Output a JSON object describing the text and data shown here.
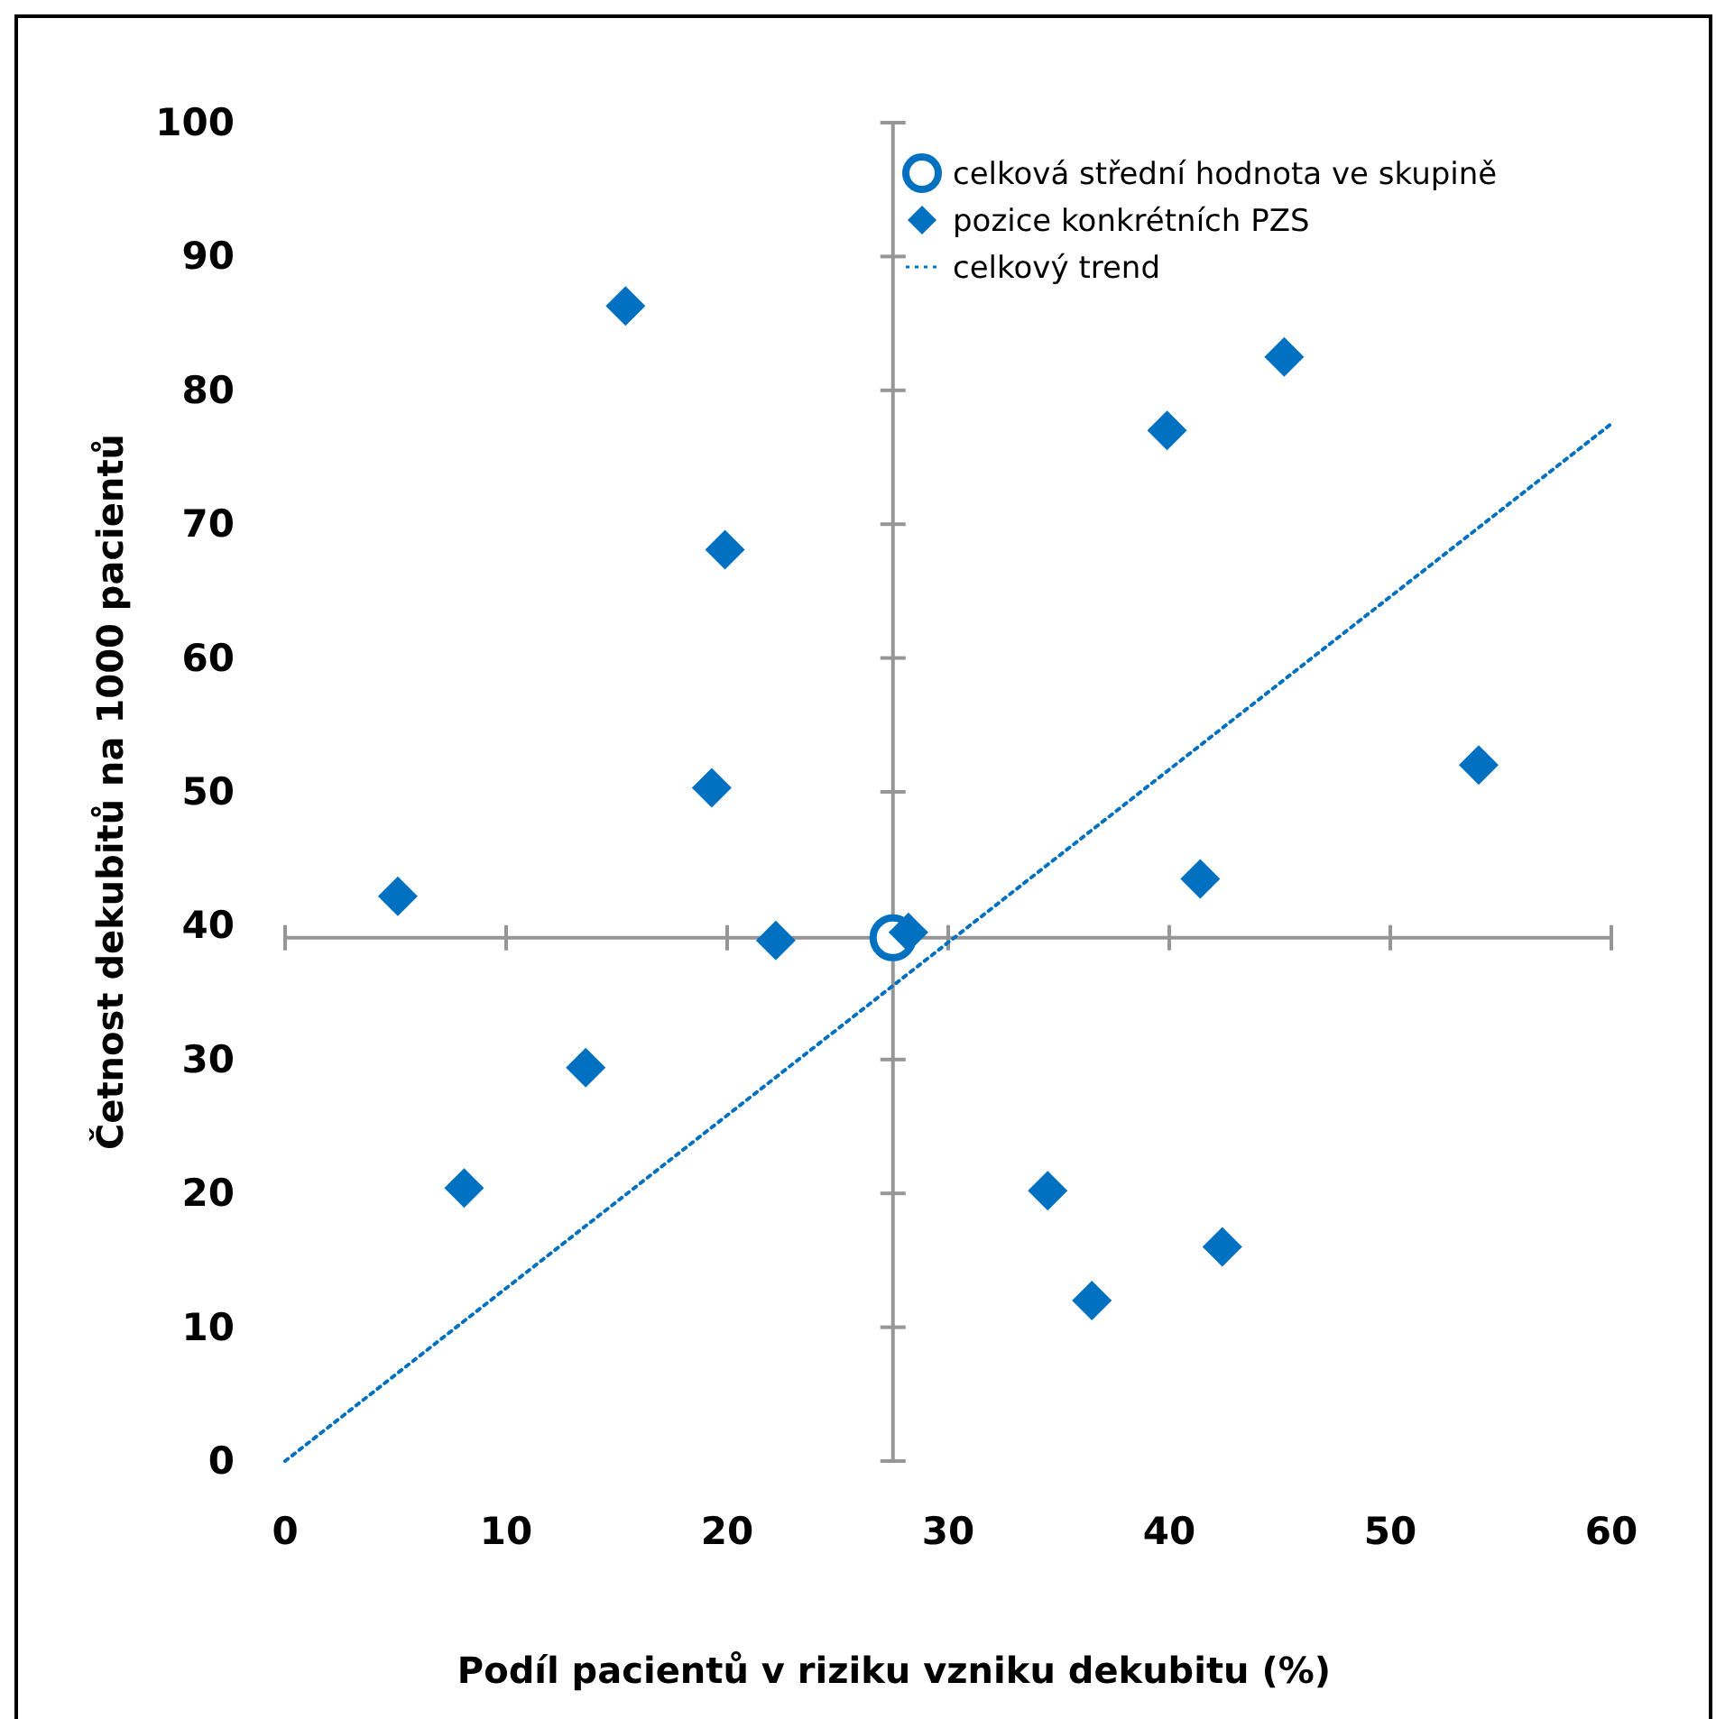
{
  "chart_data": {
    "type": "scatter",
    "xlabel": "Podíl pacientů v riziku vzniku dekubitu (%)",
    "ylabel": "Četnost dekubitů na 1000 pacientů",
    "xlim": [
      0,
      60
    ],
    "xticks": [
      0,
      10,
      20,
      30,
      40,
      50,
      60
    ],
    "ylim": [
      0,
      100
    ],
    "yticks": [
      0,
      10,
      20,
      30,
      40,
      50,
      60,
      70,
      80,
      90,
      100
    ],
    "grid": false,
    "legend": "top right",
    "ref_lines": [
      {
        "axis": "x",
        "value": 27.5,
        "color": "#969696"
      },
      {
        "axis": "y",
        "value": 39.1,
        "color": "#969696"
      }
    ],
    "series": [
      {
        "name": "celková střední hodnota ve skupině",
        "marker": "circle",
        "color": "#0070c0",
        "x": [
          27.5
        ],
        "values": [
          39.1
        ]
      },
      {
        "name": "pozice konkrétních PZS",
        "marker": "diamond",
        "color": "#0070c0",
        "x": [
          5.1,
          8.1,
          13.6,
          15.4,
          19.3,
          19.9,
          22.2,
          28.2,
          34.5,
          36.5,
          39.9,
          41.4,
          42.4,
          45.2,
          54.0
        ],
        "values": [
          42.2,
          20.4,
          29.4,
          86.3,
          50.3,
          68.1,
          38.9,
          39.5,
          20.2,
          12.0,
          77.0,
          43.5,
          16.0,
          82.5,
          52.0
        ]
      },
      {
        "name": "celkový trend",
        "type": "line",
        "line_style": "dotted",
        "color": "#0070c0",
        "x": [
          0,
          60
        ],
        "values": [
          0,
          77.5
        ]
      }
    ]
  }
}
